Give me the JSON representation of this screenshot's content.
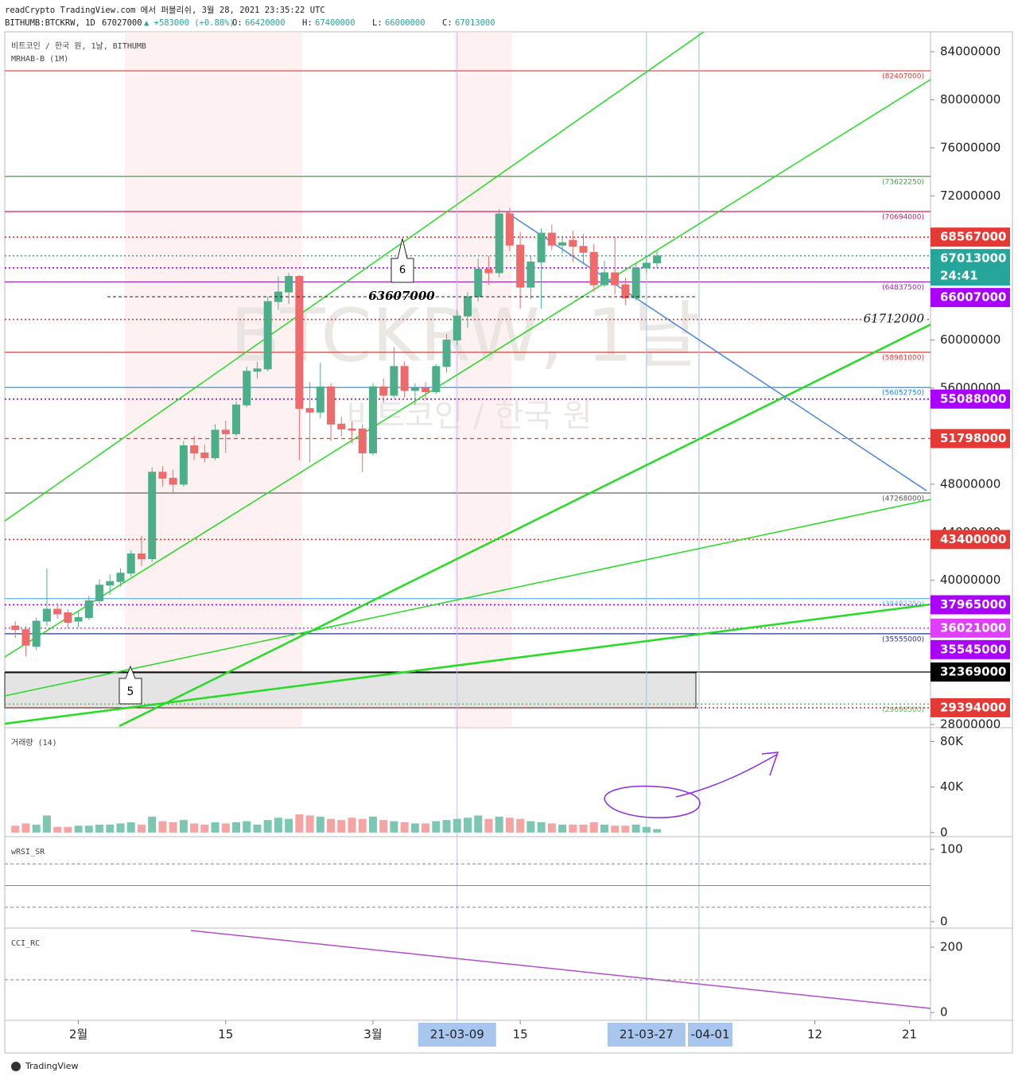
{
  "header": {
    "published": "readCrypto TradingView.com 에서 퍼블리쉬, 3월 28, 2021 23:35:22 UTC",
    "symbol": "BITHUMB:BTCKRW, 1D",
    "price": 67027000,
    "change": "▲ +583000 (+0.88%)",
    "ohlc": [
      {
        "label": "O:",
        "value": 66420000
      },
      {
        "label": "H:",
        "value": 67400000
      },
      {
        "label": "L:",
        "value": 66000000
      },
      {
        "label": "C:",
        "value": 67013000
      }
    ],
    "legend": "비트코인 / 한국 원, 1날, BITHUMB",
    "indicator": "MRHAB-B (1M)",
    "watermark": "BTCKRW, 1날",
    "watermark_sub": "비트코인 / 한국 원"
  },
  "chart_data": [
    {
      "type": "candlestick",
      "x": [
        "21-01-26",
        "21-01-27",
        "21-01-28",
        "21-01-29",
        "21-01-30",
        "21-01-31",
        "21-02-01",
        "21-02-02",
        "21-02-03",
        "21-02-04",
        "21-02-05",
        "21-02-06",
        "21-02-07",
        "21-02-08",
        "21-02-09",
        "21-02-10",
        "21-02-11",
        "21-02-12",
        "21-02-13",
        "21-02-14",
        "21-02-15",
        "21-02-16",
        "21-02-17",
        "21-02-18",
        "21-02-19",
        "21-02-20",
        "21-02-21",
        "21-02-22",
        "21-02-23",
        "21-02-24",
        "21-02-25",
        "21-02-26",
        "21-02-27",
        "21-02-28",
        "21-03-01",
        "21-03-02",
        "21-03-03",
        "21-03-04",
        "21-03-05",
        "21-03-06",
        "21-03-07",
        "21-03-08",
        "21-03-09",
        "21-03-10",
        "21-03-11",
        "21-03-12",
        "21-03-13",
        "21-03-14",
        "21-03-15",
        "21-03-16",
        "21-03-17",
        "21-03-18",
        "21-03-19",
        "21-03-20",
        "21-03-21",
        "21-03-22",
        "21-03-23",
        "21-03-24",
        "21-03-25",
        "21-03-26",
        "21-03-27",
        "21-03-28"
      ],
      "open": [
        36200000,
        35900000,
        34500000,
        36600000,
        37600000,
        37300000,
        36600000,
        36900000,
        38300000,
        39600000,
        39900000,
        40600000,
        42200000,
        41800000,
        49000000,
        48500000,
        48000000,
        51200000,
        50600000,
        50200000,
        52500000,
        52200000,
        54600000,
        57400000,
        57600000,
        63200000,
        64000000,
        65300000,
        54300000,
        54000000,
        56100000,
        53000000,
        52600000,
        52600000,
        50600000,
        56100000,
        55400000,
        57800000,
        55800000,
        56000000,
        55700000,
        57800000,
        60000000,
        62000000,
        63600000,
        65900000,
        65600000,
        70500000,
        67900000,
        64400000,
        66500000,
        68900000,
        67900000,
        68300000,
        67800000,
        67300000,
        64600000,
        65600000,
        64600000,
        63500000,
        66000000,
        66420000
      ],
      "high": [
        36600000,
        36200000,
        36900000,
        41000000,
        38100000,
        37600000,
        37400000,
        38700000,
        40100000,
        40500000,
        41000000,
        42500000,
        43700000,
        49400000,
        49500000,
        49200000,
        51600000,
        52000000,
        51300000,
        53000000,
        53300000,
        54900000,
        57800000,
        58200000,
        63600000,
        65300000,
        65600000,
        65400000,
        56500000,
        58100000,
        56400000,
        53600000,
        53200000,
        53000000,
        56400000,
        56800000,
        59400000,
        58200000,
        56400000,
        56500000,
        58000000,
        60500000,
        62500000,
        64000000,
        66800000,
        67000000,
        70900000,
        71000000,
        69000000,
        67000000,
        69300000,
        69600000,
        68700000,
        69100000,
        68800000,
        68000000,
        66600000,
        68600000,
        65200000,
        66400000,
        67000000,
        67400000
      ],
      "low": [
        35200000,
        33700000,
        34200000,
        36200000,
        36800000,
        36000000,
        36100000,
        36700000,
        38000000,
        38800000,
        39500000,
        40300000,
        41200000,
        41500000,
        47800000,
        47200000,
        47800000,
        50000000,
        49800000,
        50000000,
        50600000,
        52000000,
        54400000,
        56800000,
        57400000,
        62500000,
        63000000,
        50000000,
        49800000,
        53500000,
        51600000,
        52000000,
        51400000,
        49000000,
        50400000,
        54800000,
        55200000,
        55200000,
        54600000,
        55000000,
        55500000,
        57300000,
        59600000,
        61000000,
        63200000,
        64600000,
        65200000,
        67400000,
        62600000,
        63400000,
        62600000,
        67500000,
        67200000,
        66500000,
        66300000,
        64000000,
        64400000,
        63800000,
        62900000,
        63300000,
        65600000,
        66000000
      ],
      "close": [
        35900000,
        34600000,
        36600000,
        37600000,
        37200000,
        36500000,
        36900000,
        38300000,
        39600000,
        39900000,
        40600000,
        42200000,
        41800000,
        49000000,
        48500000,
        48000000,
        51200000,
        50600000,
        50200000,
        52500000,
        52200000,
        54600000,
        57400000,
        57600000,
        63200000,
        64000000,
        65300000,
        54300000,
        54000000,
        56100000,
        53000000,
        52600000,
        52500000,
        50600000,
        56100000,
        55400000,
        57800000,
        55800000,
        56000000,
        55700000,
        57800000,
        60000000,
        62000000,
        63600000,
        65900000,
        65600000,
        70500000,
        67900000,
        64400000,
        66500000,
        68900000,
        67900000,
        68100000,
        67800000,
        67300000,
        64600000,
        65600000,
        64600000,
        63500000,
        66000000,
        66400000,
        67013000
      ],
      "up_color": "#4caf8a",
      "down_color": "#ef6b6b",
      "xlim": [
        "21-01-25",
        "21-04-23"
      ],
      "xticks": [
        {
          "value": "21-02-01",
          "label": "2월"
        },
        {
          "value": "21-02-15",
          "label": "15"
        },
        {
          "value": "21-03-01",
          "label": "3월"
        },
        {
          "value": "21-03-15",
          "label": "15"
        },
        {
          "value": "21-04-12",
          "label": "12"
        },
        {
          "value": "21-04-21",
          "label": "21"
        }
      ],
      "x_highlights": [
        "21-03-09",
        "21-03-27",
        {
          "value": "21-04-01",
          "label": "-04-01"
        }
      ],
      "ylim": [
        27735000,
        85655000
      ],
      "yticks": [
        84000000,
        80000000,
        76000000,
        72000000,
        60000000,
        56000000,
        48000000,
        44000000,
        40000000,
        28000000
      ],
      "levels": [
        {
          "value": 82407000,
          "label": "(82407000)",
          "color": "#e53935",
          "style": "solid"
        },
        {
          "value": 73622250,
          "label": "(73622250)",
          "color": "#43a047",
          "style": "solid"
        },
        {
          "value": 70694000,
          "label": "(70694000)",
          "color": "#d81b60",
          "style": "solid"
        },
        {
          "value": 68567000,
          "color": "#e53935",
          "style": "dotted",
          "badge": true
        },
        {
          "value": 67013000,
          "color": "#26a69a",
          "style": "dotted",
          "badge": true,
          "countdown": "24:41"
        },
        {
          "value": 66007000,
          "color": "#aa00ff",
          "style": "dotted",
          "badge": true
        },
        {
          "value": 64837500,
          "label": "(64837500)",
          "color": "#9c27b0",
          "style": "solid"
        },
        {
          "value": 61712000,
          "color": "#e53935",
          "style": "dotted",
          "note": true
        },
        {
          "value": 58981000,
          "label": "(58981000)",
          "color": "#e53935",
          "style": "solid"
        },
        {
          "value": 56052750,
          "label": "(56052750)",
          "color": "#1e88e5",
          "style": "solid"
        },
        {
          "value": 55088000,
          "color": "#aa00ff",
          "style": "dotted",
          "badge": true
        },
        {
          "value": 51798000,
          "color": "#e53935",
          "style": "dashed",
          "badge": true
        },
        {
          "value": 47268000,
          "label": "(47268000)",
          "color": "#555555",
          "style": "solid"
        },
        {
          "value": 43400000,
          "color": "#e53935",
          "style": "dotted",
          "badge": true
        },
        {
          "value": 38482250,
          "label": "(38482250)",
          "color": "#64b5f6",
          "style": "solid"
        },
        {
          "value": 37965000,
          "color": "#aa00ff",
          "style": "dotted",
          "badge": true
        },
        {
          "value": 36021000,
          "color": "#e040fb",
          "style": "dotted",
          "badge": true
        },
        {
          "value": 35555000,
          "label": "(35555000)",
          "color": "#283593",
          "style": "solid"
        },
        {
          "value": 35545000,
          "color": "#aa00ff",
          "style": "none",
          "badge": true
        },
        {
          "value": 32369000,
          "color": "#000000",
          "style": "solid",
          "badge": true
        },
        {
          "value": 29698500,
          "label": "(29698500)",
          "color": "#66bb6a",
          "style": "dotted"
        },
        {
          "value": 29394000,
          "color": "#e53935",
          "style": "dotted",
          "badge": true
        }
      ],
      "annotations": {
        "wave_6": "6",
        "wave_5": "5",
        "mark_price": 63607000
      }
    },
    {
      "type": "bar",
      "title": "거래량 (14)",
      "values": [
        6000,
        8000,
        7000,
        15000,
        5000,
        5000,
        6000,
        6000,
        7000,
        7000,
        8000,
        9000,
        7000,
        14000,
        10000,
        9000,
        11000,
        8000,
        7000,
        9000,
        8000,
        9000,
        10000,
        7000,
        11000,
        13000,
        12000,
        16000,
        15000,
        14000,
        12000,
        11000,
        13000,
        12000,
        14000,
        11000,
        10000,
        9000,
        8000,
        8000,
        10000,
        11000,
        12000,
        13000,
        15000,
        12000,
        14000,
        13000,
        12000,
        10000,
        9000,
        8000,
        7000,
        7000,
        7000,
        9000,
        7000,
        6000,
        6000,
        7000,
        5000,
        3000
      ],
      "ylim": [
        -3600,
        90100
      ],
      "yticks": [
        {
          "value": 80000,
          "label": "80K"
        },
        {
          "value": 40000,
          "label": "40K"
        },
        0
      ]
    },
    {
      "type": "indicator",
      "title": "wRSI_SR",
      "ylim": [
        -8.8,
        114.3
      ],
      "yticks": [
        100,
        0
      ],
      "guides": [
        80,
        50,
        20
      ]
    },
    {
      "type": "indicator",
      "title": "CCI_RC",
      "ylim": [
        -24,
        251
      ],
      "yticks": [
        200,
        0
      ],
      "guides": [
        100
      ]
    }
  ],
  "footer": "TradingView"
}
